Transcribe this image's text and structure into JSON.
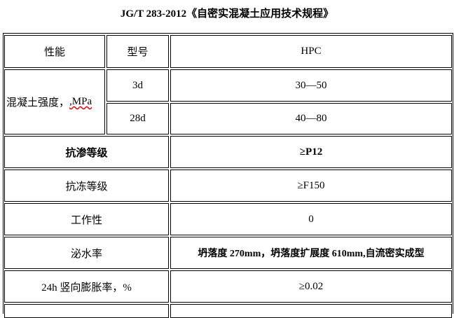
{
  "title": "JG/T 283-2012《自密实混凝土应用技术规程》",
  "table": {
    "header": {
      "property": "性能",
      "model": "型号",
      "value": "HPC"
    },
    "strength": {
      "label": "混凝土强度，",
      "unit": ",MPa",
      "rows": [
        {
          "age": "3d",
          "value": "30—50"
        },
        {
          "age": "28d",
          "value": "40—80"
        }
      ]
    },
    "rows": [
      {
        "label": "抗渗等级",
        "value": "≥P12",
        "bold": true
      },
      {
        "label": "抗冻等级",
        "value": "≥F150"
      },
      {
        "label": "工作性",
        "value": "0"
      },
      {
        "label": "泌水率",
        "value": "坍落度 270mm，坍落度扩展度 610mm,自流密实成型",
        "value_bold": true
      },
      {
        "label": "24h 竖向膨胀率，%",
        "value": "≥0.02"
      }
    ]
  }
}
